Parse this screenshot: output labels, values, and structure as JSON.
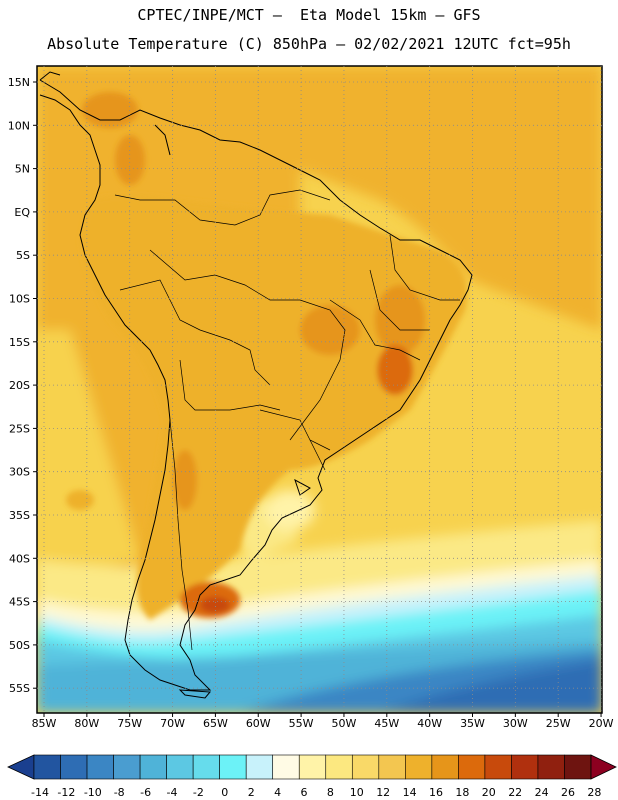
{
  "header": {
    "line1": "CPTEC/INPE/MCT –  Eta Model 15km – GFS",
    "line2": "Absolute Temperature (C) 850hPa – 02/02/2021 12UTC fct=95h"
  },
  "map": {
    "region": "South America",
    "lon_range": [
      -85,
      -20
    ],
    "lat_range": [
      -58,
      17
    ],
    "lat_labels": [
      "15N",
      "10N",
      "5N",
      "EQ",
      "5S",
      "10S",
      "15S",
      "20S",
      "25S",
      "30S",
      "35S",
      "40S",
      "45S",
      "50S",
      "55S"
    ],
    "lon_labels": [
      "85W",
      "80W",
      "75W",
      "70W",
      "65W",
      "60W",
      "55W",
      "50W",
      "45W",
      "40W",
      "35W",
      "30W",
      "25W",
      "20W"
    ],
    "gridlines": "dotted"
  },
  "colorbar": {
    "ticks": [
      "-14",
      "-12",
      "-10",
      "-8",
      "-6",
      "-4",
      "-2",
      "0",
      "2",
      "4",
      "6",
      "8",
      "10",
      "12",
      "14",
      "16",
      "18",
      "20",
      "22",
      "24",
      "26",
      "28"
    ],
    "colors": [
      "#1a3f8f",
      "#2255a0",
      "#2e6db4",
      "#3b86c4",
      "#4a9dd0",
      "#4fb3d8",
      "#5cc8e3",
      "#66dcec",
      "#6cf2f7",
      "#c8f2fb",
      "#fffbe5",
      "#fff3a8",
      "#fce880",
      "#f9d968",
      "#f3c650",
      "#eeb12c",
      "#e6951a",
      "#dc6a0c",
      "#c84a0c",
      "#b0300e",
      "#90200f",
      "#6e1410",
      "#8c0020"
    ]
  }
}
